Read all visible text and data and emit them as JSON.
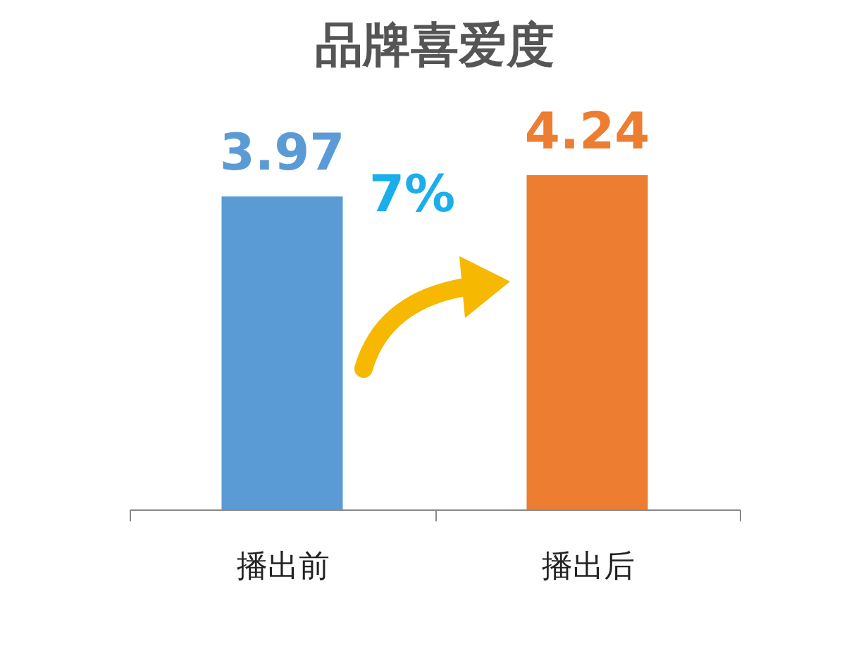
{
  "chart_data": {
    "type": "bar",
    "title": "品牌喜爱度",
    "categories": [
      "播出前",
      "播出后"
    ],
    "values": [
      3.97,
      4.24
    ],
    "colors": [
      "#5b9bd5",
      "#ed7d31"
    ],
    "tick_labels": "x",
    "data_labels": true,
    "grid": false,
    "annotations": [
      "7%"
    ]
  }
}
